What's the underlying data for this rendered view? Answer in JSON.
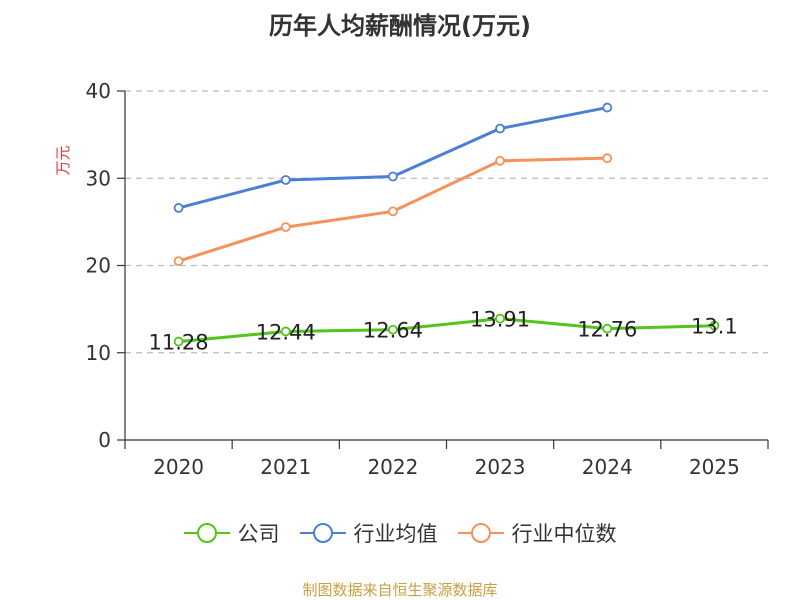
{
  "chart_data": {
    "type": "line",
    "title": "历年人均薪酬情况(万元)",
    "ylabel": "万元",
    "xlabel": "",
    "categories": [
      "2020",
      "2021",
      "2022",
      "2023",
      "2024",
      "2025"
    ],
    "ylim": [
      0,
      40
    ],
    "yticks": [
      0,
      10,
      20,
      30,
      40
    ],
    "grid": true,
    "legend_position": "bottom",
    "series": [
      {
        "name": "公司",
        "color": "#52c41a",
        "values": [
          11.28,
          12.44,
          12.64,
          13.91,
          12.76,
          13.1
        ],
        "labels": [
          "11.28",
          "12.44",
          "12.64",
          "13.91",
          "12.76",
          "13.1"
        ]
      },
      {
        "name": "行业均值",
        "color": "#4a7fd6",
        "values": [
          26.6,
          29.8,
          30.2,
          35.7,
          38.1,
          null
        ]
      },
      {
        "name": "行业中位数",
        "color": "#f4925a",
        "values": [
          20.5,
          24.4,
          26.2,
          32.0,
          32.3,
          null
        ]
      }
    ]
  },
  "footer": {
    "source": "制图数据来自恒生聚源数据库"
  }
}
